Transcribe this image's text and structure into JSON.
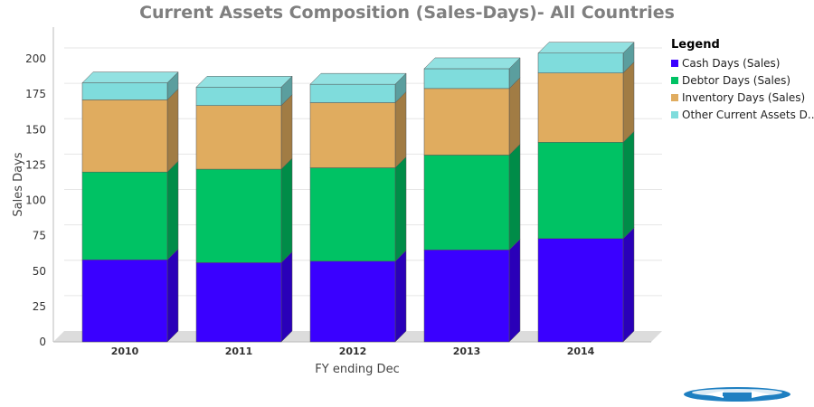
{
  "chart_data": {
    "type": "bar",
    "stacked": true,
    "three_d": true,
    "title": "Current Assets Composition (Sales-Days)- All Countries",
    "xlabel": "FY ending Dec",
    "ylabel": "Sales Days",
    "categories": [
      "2010",
      "2011",
      "2012",
      "2013",
      "2014"
    ],
    "ylim": [
      0,
      200
    ],
    "yticks": [
      0,
      25,
      50,
      75,
      100,
      125,
      150,
      175,
      200
    ],
    "grid": true,
    "legend_title": "Legend",
    "legend_position": "right",
    "series": [
      {
        "name": "Cash Days (Sales)",
        "color": "#3a00ff",
        "values": [
          58,
          56,
          57,
          65,
          73
        ]
      },
      {
        "name": "Debtor Days (Sales)",
        "color": "#00c264",
        "values": [
          62,
          66,
          66,
          67,
          68
        ]
      },
      {
        "name": "Inventory Days (Sales)",
        "color": "#e0ac5f",
        "values": [
          51,
          45,
          46,
          47,
          49
        ]
      },
      {
        "name": "Other Current Assets D...",
        "color": "#7fdcdc",
        "values": [
          12,
          13,
          13,
          14,
          14
        ]
      }
    ]
  },
  "logo": {
    "name": "brand-logo-icon"
  }
}
